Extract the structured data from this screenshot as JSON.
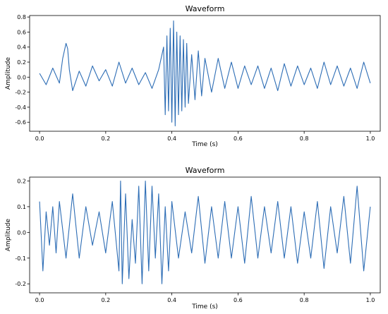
{
  "chart_data": [
    {
      "type": "line",
      "title": "Waveform",
      "xlabel": "Time (s)",
      "ylabel": "Amplitude",
      "xlim": [
        -0.03,
        1.03
      ],
      "ylim": [
        -0.72,
        0.82
      ],
      "xticks": [
        0.0,
        0.2,
        0.4,
        0.6,
        0.8,
        1.0
      ],
      "xtick_labels": [
        "0.0",
        "0.2",
        "0.4",
        "0.6",
        "0.8",
        "1.0"
      ],
      "yticks": [
        -0.6,
        -0.4,
        -0.2,
        0.0,
        0.2,
        0.4,
        0.6,
        0.8
      ],
      "ytick_labels": [
        "-0.6",
        "-0.4",
        "-0.2",
        "0.0",
        "0.2",
        "0.4",
        "0.6",
        "0.8"
      ],
      "grid": false,
      "color": "#2d6db5",
      "series": [
        {
          "x": [
            0.0,
            0.02,
            0.04,
            0.06,
            0.07,
            0.08,
            0.085,
            0.09,
            0.1,
            0.12,
            0.14,
            0.16,
            0.18,
            0.2,
            0.22,
            0.24,
            0.26,
            0.28,
            0.3,
            0.32,
            0.34,
            0.36,
            0.375,
            0.38,
            0.385,
            0.39,
            0.395,
            0.4,
            0.405,
            0.41,
            0.415,
            0.42,
            0.425,
            0.43,
            0.435,
            0.44,
            0.445,
            0.45,
            0.46,
            0.47,
            0.48,
            0.49,
            0.5,
            0.52,
            0.54,
            0.56,
            0.58,
            0.6,
            0.62,
            0.64,
            0.66,
            0.68,
            0.7,
            0.72,
            0.74,
            0.76,
            0.78,
            0.8,
            0.82,
            0.84,
            0.86,
            0.88,
            0.9,
            0.92,
            0.94,
            0.96,
            0.98,
            1.0
          ],
          "y": [
            0.05,
            -0.1,
            0.12,
            -0.08,
            0.25,
            0.45,
            0.38,
            0.1,
            -0.18,
            0.08,
            -0.12,
            0.15,
            -0.05,
            0.1,
            -0.12,
            0.2,
            -0.08,
            0.12,
            -0.1,
            0.06,
            -0.15,
            0.1,
            0.4,
            -0.5,
            0.55,
            -0.45,
            0.65,
            -0.6,
            0.75,
            -0.65,
            0.6,
            -0.5,
            0.55,
            -0.45,
            0.5,
            -0.4,
            0.45,
            -0.35,
            0.3,
            -0.3,
            0.35,
            -0.25,
            0.25,
            -0.2,
            0.25,
            -0.15,
            0.2,
            -0.15,
            0.15,
            -0.1,
            0.15,
            -0.15,
            0.12,
            -0.18,
            0.18,
            -0.12,
            0.15,
            -0.1,
            0.12,
            -0.15,
            0.2,
            -0.1,
            0.15,
            -0.12,
            0.12,
            -0.15,
            0.2,
            -0.08
          ]
        }
      ]
    },
    {
      "type": "line",
      "title": "Waveform",
      "xlabel": "Time (s)",
      "ylabel": "Amplitude",
      "xlim": [
        -0.03,
        1.03
      ],
      "ylim": [
        -0.235,
        0.215
      ],
      "xticks": [
        0.0,
        0.2,
        0.4,
        0.6,
        0.8,
        1.0
      ],
      "xtick_labels": [
        "0.0",
        "0.2",
        "0.4",
        "0.6",
        "0.8",
        "1.0"
      ],
      "yticks": [
        -0.2,
        -0.1,
        0.0,
        0.1,
        0.2
      ],
      "ytick_labels": [
        "-0.2",
        "-0.1",
        "0.0",
        "0.1",
        "0.2"
      ],
      "grid": false,
      "color": "#2d6db5",
      "series": [
        {
          "x": [
            0.0,
            0.01,
            0.02,
            0.03,
            0.04,
            0.05,
            0.06,
            0.08,
            0.1,
            0.12,
            0.14,
            0.16,
            0.18,
            0.2,
            0.22,
            0.24,
            0.245,
            0.25,
            0.26,
            0.27,
            0.28,
            0.29,
            0.3,
            0.31,
            0.32,
            0.33,
            0.34,
            0.35,
            0.36,
            0.37,
            0.38,
            0.39,
            0.4,
            0.42,
            0.44,
            0.46,
            0.48,
            0.5,
            0.52,
            0.54,
            0.56,
            0.58,
            0.6,
            0.62,
            0.64,
            0.66,
            0.68,
            0.7,
            0.72,
            0.74,
            0.76,
            0.78,
            0.8,
            0.82,
            0.84,
            0.86,
            0.88,
            0.9,
            0.92,
            0.94,
            0.96,
            0.98,
            1.0
          ],
          "y": [
            0.12,
            -0.15,
            0.08,
            -0.05,
            0.1,
            -0.08,
            0.12,
            -0.1,
            0.15,
            -0.1,
            0.1,
            -0.05,
            0.08,
            -0.08,
            0.12,
            -0.15,
            0.2,
            -0.2,
            0.15,
            -0.18,
            0.05,
            -0.12,
            0.18,
            -0.2,
            0.2,
            -0.15,
            0.18,
            -0.1,
            0.15,
            -0.2,
            0.1,
            -0.15,
            0.12,
            -0.1,
            0.08,
            -0.08,
            0.14,
            -0.12,
            0.1,
            -0.1,
            0.12,
            -0.1,
            0.1,
            -0.12,
            0.14,
            -0.1,
            0.1,
            -0.08,
            0.12,
            -0.1,
            0.1,
            -0.12,
            0.08,
            -0.1,
            0.12,
            -0.14,
            0.1,
            -0.08,
            0.14,
            -0.12,
            0.18,
            -0.15,
            0.1
          ]
        }
      ]
    }
  ]
}
